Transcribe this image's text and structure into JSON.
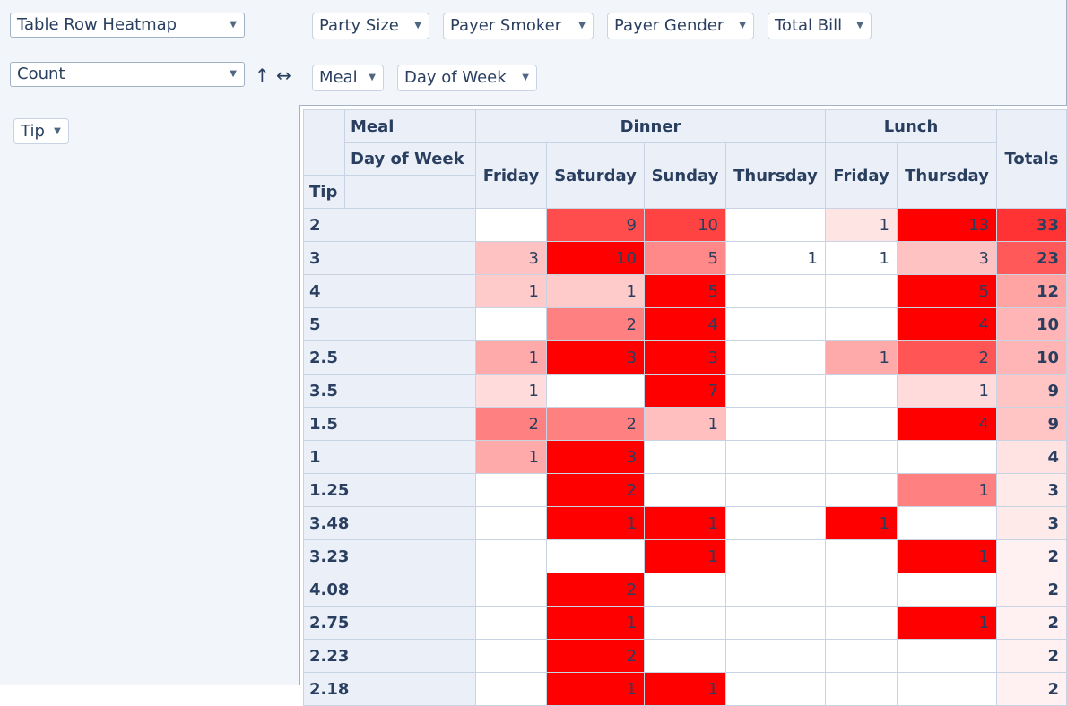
{
  "renderer": {
    "label": "Table Row Heatmap"
  },
  "aggregator": {
    "label": "Count"
  },
  "controls": {
    "sort_icon": "↑",
    "order_icon": "↔"
  },
  "col_fields": [
    "Party Size",
    "Payer Smoker",
    "Payer Gender",
    "Total Bill"
  ],
  "row_area_fields": [
    "Meal",
    "Day of Week"
  ],
  "row_attr": "Tip",
  "table": {
    "header_meal": "Meal",
    "header_dow": "Day of Week",
    "header_tip": "Tip",
    "meal_groups": [
      {
        "label": "Dinner",
        "span": 4
      },
      {
        "label": "Lunch",
        "span": 2
      }
    ],
    "days": [
      "Friday",
      "Saturday",
      "Sunday",
      "Thursday",
      "Friday",
      "Thursday"
    ],
    "totals_label": "Totals",
    "rows": [
      {
        "label": "2",
        "values": [
          "",
          "9",
          "10",
          "",
          "1",
          "13"
        ],
        "total": "33"
      },
      {
        "label": "3",
        "values": [
          "3",
          "10",
          "5",
          "1",
          "1",
          "3"
        ],
        "total": "23"
      },
      {
        "label": "4",
        "values": [
          "1",
          "1",
          "5",
          "",
          "",
          "5"
        ],
        "total": "12"
      },
      {
        "label": "5",
        "values": [
          "",
          "2",
          "4",
          "",
          "",
          "4"
        ],
        "total": "10"
      },
      {
        "label": "2.5",
        "values": [
          "1",
          "3",
          "3",
          "",
          "1",
          "2"
        ],
        "total": "10"
      },
      {
        "label": "3.5",
        "values": [
          "1",
          "",
          "7",
          "",
          "",
          "1"
        ],
        "total": "9"
      },
      {
        "label": "1.5",
        "values": [
          "2",
          "2",
          "1",
          "",
          "",
          "4"
        ],
        "total": "9"
      },
      {
        "label": "1",
        "values": [
          "1",
          "3",
          "",
          "",
          "",
          ""
        ],
        "total": "4"
      },
      {
        "label": "1.25",
        "values": [
          "",
          "2",
          "",
          "",
          "",
          "1"
        ],
        "total": "3"
      },
      {
        "label": "3.48",
        "values": [
          "",
          "1",
          "1",
          "",
          "1",
          ""
        ],
        "total": "3"
      },
      {
        "label": "3.23",
        "values": [
          "",
          "",
          "1",
          "",
          "",
          "1"
        ],
        "total": "2"
      },
      {
        "label": "4.08",
        "values": [
          "",
          "2",
          "",
          "",
          "",
          ""
        ],
        "total": "2"
      },
      {
        "label": "2.75",
        "values": [
          "",
          "1",
          "",
          "",
          "",
          "1"
        ],
        "total": "2"
      },
      {
        "label": "2.23",
        "values": [
          "",
          "2",
          "",
          "",
          "",
          ""
        ],
        "total": "2"
      },
      {
        "label": "2.18",
        "values": [
          "",
          "1",
          "1",
          "",
          "",
          ""
        ],
        "total": "2"
      }
    ]
  },
  "heat_colors": {
    "r0": [
      "",
      "#ff4d4d",
      "#ff4242",
      "",
      "#ffe4e4",
      "#ff0000"
    ],
    "r1": [
      "#ffc2c2",
      "#ff0000",
      "#ff8888",
      "#ffffff",
      "#ffffff",
      "#ffc2c2"
    ],
    "r2": [
      "#ffcaca",
      "#ffcaca",
      "#ff0000",
      "",
      "",
      "#ff0000"
    ],
    "r3": [
      "",
      "#ff8080",
      "#ff0000",
      "",
      "",
      "#ff0000"
    ],
    "r4": [
      "#ffaaaa",
      "#ff0000",
      "#ff0000",
      "",
      "#ffaaaa",
      "#ff5555"
    ],
    "r5": [
      "#ffdbdb",
      "",
      "#ff0000",
      "",
      "",
      "#ffdbdb"
    ],
    "r6": [
      "#ff8080",
      "#ff8080",
      "#ffbfbf",
      "",
      "",
      "#ff0000"
    ],
    "r7": [
      "#ffaaaa",
      "#ff0000",
      "",
      "",
      "",
      ""
    ],
    "r8": [
      "",
      "#ff0000",
      "",
      "",
      "",
      "#ff8080"
    ],
    "r9": [
      "",
      "#ff0000",
      "#ff0000",
      "",
      "#ff0000",
      ""
    ],
    "r10": [
      "",
      "",
      "#ff0000",
      "",
      "",
      "#ff0000"
    ],
    "r11": [
      "",
      "#ff0000",
      "",
      "",
      "",
      ""
    ],
    "r12": [
      "",
      "#ff0000",
      "",
      "",
      "",
      "#ff0000"
    ],
    "r13": [
      "",
      "#ff0000",
      "",
      "",
      "",
      ""
    ],
    "r14": [
      "",
      "#ff0000",
      "#ff0000",
      "",
      "",
      ""
    ],
    "totals": [
      "#ff3333",
      "#ff5959",
      "#ffa3a3",
      "#ffb5b5",
      "#ffb5b5",
      "#ffc4c4",
      "#ffc4c4",
      "#ffe2e2",
      "#ffeaea",
      "#ffeaea",
      "#fff1f1",
      "#fff1f1",
      "#fff1f1",
      "#fff1f1",
      "#fff1f1"
    ]
  }
}
